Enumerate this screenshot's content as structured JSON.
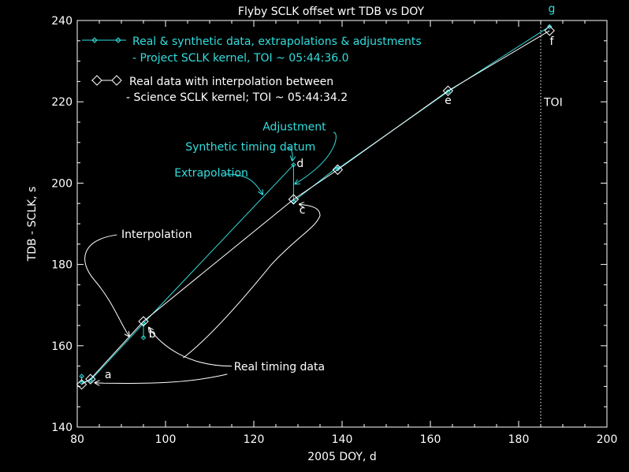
{
  "chart_data": {
    "type": "line",
    "title": "Flyby SCLK offset wrt TDB vs DOY",
    "xlabel": "2005 DOY, d",
    "ylabel": "TDB - SCLK, s",
    "xlim": [
      80,
      200
    ],
    "ylim": [
      140,
      240
    ],
    "xticks": [
      80,
      100,
      120,
      140,
      160,
      180,
      200
    ],
    "yticks": [
      140,
      160,
      180,
      200,
      220,
      240
    ],
    "grid": false,
    "legend_position": "top-left",
    "toi_line": {
      "x": 185,
      "label": "TOI",
      "color": "#ffffff"
    },
    "series": [
      {
        "name": "Real & synthetic data, extrapolations & adjustments",
        "subtitle": "- Project SCLK kernel, TOI ~ 05:44:36.0",
        "color": "#33dddd",
        "marker": "small-diamond",
        "points": [
          [
            81,
            152.5
          ],
          [
            81,
            151
          ],
          [
            83,
            151.5
          ],
          [
            95,
            165.5
          ],
          [
            95,
            162
          ],
          [
            95,
            165.5
          ],
          [
            129,
            204.5
          ],
          [
            129,
            195.5
          ],
          [
            139,
            204
          ],
          [
            139,
            203.5
          ],
          [
            164,
            222.5
          ],
          [
            187,
            238.5
          ]
        ]
      },
      {
        "name": "Real data with interpolation between",
        "subtitle": "- Science SCLK kernel; TOI ~ 05:44:34.2",
        "color": "#ffffff",
        "marker": "open-diamond",
        "points": [
          [
            81,
            150.5
          ],
          [
            83,
            151.8
          ],
          [
            95,
            166
          ],
          [
            129,
            196
          ],
          [
            139,
            203.3
          ],
          [
            164,
            222.7
          ],
          [
            187,
            237.5
          ]
        ]
      }
    ],
    "point_labels": [
      {
        "text": "a",
        "x": 87,
        "y": 152,
        "color": "#ffffff"
      },
      {
        "text": "b",
        "x": 97,
        "y": 162,
        "color": "#ffffff"
      },
      {
        "text": "c",
        "x": 131,
        "y": 192.5,
        "color": "#ffffff"
      },
      {
        "text": "d",
        "x": 130.5,
        "y": 204,
        "color": "#ffffff"
      },
      {
        "text": "e",
        "x": 164,
        "y": 219.5,
        "color": "#ffffff"
      },
      {
        "text": "f",
        "x": 187.5,
        "y": 234,
        "color": "#ffffff"
      },
      {
        "text": "g",
        "x": 187.5,
        "y": 242,
        "color": "#33dddd"
      }
    ],
    "annotations": [
      {
        "text": "Adjustment",
        "color": "#33dddd",
        "x": 122,
        "y": 213,
        "target": [
          129.2,
          199.5
        ]
      },
      {
        "text": "Synthetic timing datum",
        "color": "#33dddd",
        "x": 104.5,
        "y": 208,
        "target": [
          128.6,
          204.8
        ]
      },
      {
        "text": "Extrapolation",
        "color": "#33dddd",
        "x": 102,
        "y": 201.6,
        "target": [
          122,
          197
        ]
      },
      {
        "text": "Interpolation",
        "color": "#ffffff",
        "x": 90,
        "y": 186.5,
        "target": [
          91.5,
          162
        ]
      },
      {
        "text": "Real timing data",
        "color": "#ffffff",
        "x": 115.5,
        "y": 154,
        "target": [
          96,
          164
        ]
      }
    ]
  }
}
